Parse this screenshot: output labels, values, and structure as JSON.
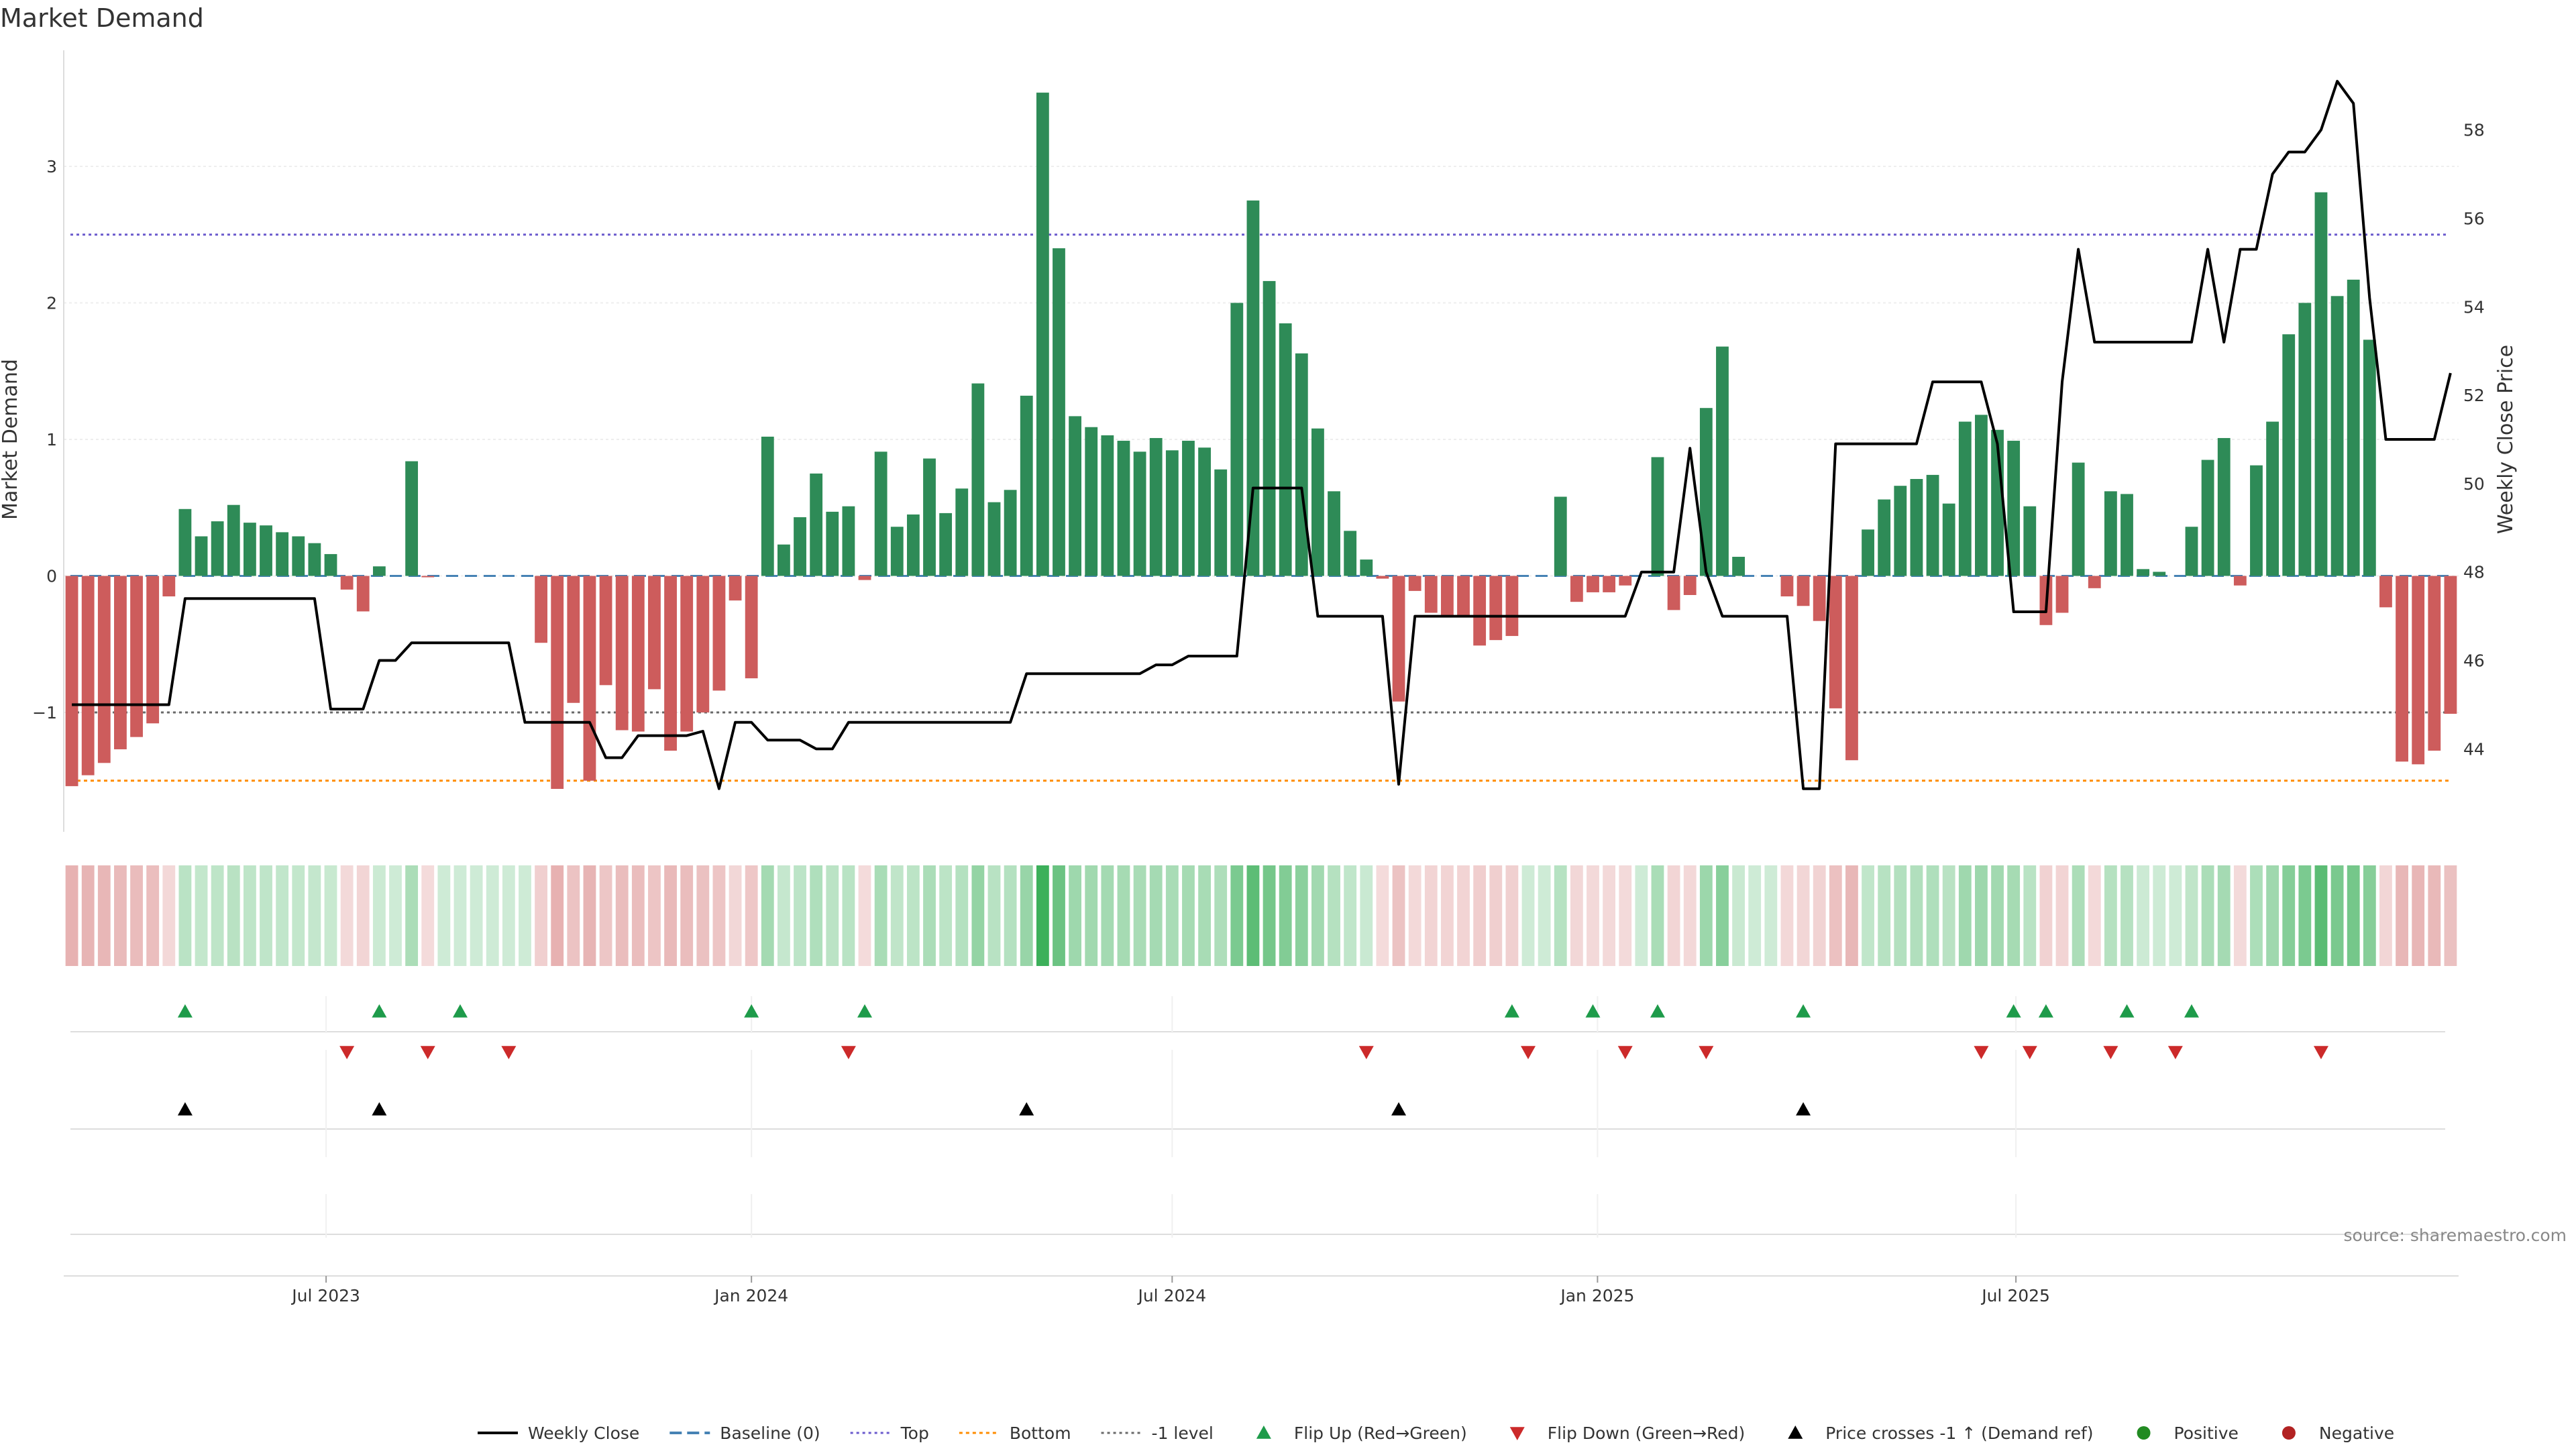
{
  "title": "Market Demand",
  "source": "source: sharemaestro.com",
  "colors": {
    "positive": "#2e8b57",
    "negative": "#cd5c5c",
    "price": "#000000",
    "baseline": "#4682b4",
    "top": "#6a5acd",
    "bottom": "#ff8c00",
    "level_minus1": "#696969",
    "flip_up": "#1e9b4a",
    "flip_down": "#cc2a2a",
    "cross": "#000000",
    "dot_positive": "#228b22",
    "dot_negative": "#b22222"
  },
  "chart_data": {
    "type": "bar",
    "ylabel": "Market Demand",
    "y2label": "Weekly Close Price",
    "ylim": [
      -1.85,
      3.85
    ],
    "y2lim": [
      42.2,
      59.8
    ],
    "yticks": [
      "−1",
      "0",
      "1",
      "2",
      "3"
    ],
    "yticks_values": [
      -1,
      0,
      1,
      2,
      3
    ],
    "y2ticks": [
      "44",
      "46",
      "48",
      "50",
      "52",
      "54",
      "56",
      "58"
    ],
    "y2ticks_values": [
      44,
      46,
      48,
      50,
      52,
      54,
      56,
      58
    ],
    "grid": true,
    "start_date": "2023-03-13",
    "xticks": [
      "Jul 2023",
      "Jan 2024",
      "Jul 2024",
      "Jan 2025",
      "Jul 2025"
    ],
    "xticks_dates": [
      "2023-07-01",
      "2024-01-01",
      "2024-07-01",
      "2025-01-01",
      "2025-07-01"
    ],
    "reference_lines": {
      "baseline": 0,
      "top": 2.5,
      "bottom": -1.5,
      "minus1_level": -1
    },
    "demand": [
      -1.54,
      -1.46,
      -1.37,
      -1.27,
      -1.18,
      -1.08,
      -0.15,
      0.49,
      0.29,
      0.4,
      0.52,
      0.39,
      0.37,
      0.32,
      0.29,
      0.24,
      0.16,
      -0.1,
      -0.26,
      0.07,
      0.0,
      0.84,
      -0.01,
      0.0,
      0.0,
      0.0,
      0.0,
      0.0,
      0.0,
      -0.49,
      -1.56,
      -0.93,
      -1.5,
      -0.8,
      -1.13,
      -1.14,
      -0.83,
      -1.28,
      -1.14,
      -1.0,
      -0.84,
      -0.18,
      -0.75,
      1.02,
      0.23,
      0.43,
      0.75,
      0.47,
      0.51,
      -0.03,
      0.91,
      0.36,
      0.45,
      0.86,
      0.46,
      0.64,
      1.41,
      0.54,
      0.63,
      1.32,
      3.54,
      2.4,
      1.17,
      1.09,
      1.03,
      0.99,
      0.91,
      1.01,
      0.92,
      0.99,
      0.94,
      0.78,
      2.0,
      2.75,
      2.16,
      1.85,
      1.63,
      1.08,
      0.62,
      0.33,
      0.12,
      -0.02,
      -0.92,
      -0.11,
      -0.27,
      -0.29,
      -0.29,
      -0.51,
      -0.47,
      -0.44,
      0.0,
      0.0,
      0.58,
      -0.19,
      -0.12,
      -0.12,
      -0.07,
      0.0,
      0.87,
      -0.25,
      -0.14,
      1.23,
      1.68,
      0.14,
      0.0,
      0.0,
      -0.15,
      -0.22,
      -0.33,
      -0.97,
      -1.35,
      0.34,
      0.56,
      0.66,
      0.71,
      0.74,
      0.53,
      1.13,
      1.18,
      1.07,
      0.99,
      0.51,
      -0.36,
      -0.27,
      0.83,
      -0.09,
      0.62,
      0.6,
      0.05,
      0.03,
      0.0,
      0.36,
      0.85,
      1.01,
      -0.07,
      0.81,
      1.13,
      1.77,
      2.0,
      2.81,
      2.05,
      2.17,
      1.73,
      -0.23,
      -1.36,
      -1.38,
      -1.28,
      -1.01
    ],
    "price": [
      45.0,
      45.0,
      45.0,
      45.0,
      45.0,
      45.0,
      45.0,
      47.4,
      47.4,
      47.4,
      47.4,
      47.4,
      47.4,
      47.4,
      47.4,
      47.4,
      44.9,
      44.9,
      44.9,
      46.0,
      46.0,
      46.4,
      46.4,
      46.4,
      46.4,
      46.4,
      46.4,
      46.4,
      44.6,
      44.6,
      44.6,
      44.6,
      44.6,
      43.8,
      43.8,
      44.3,
      44.3,
      44.3,
      44.3,
      44.4,
      43.1,
      44.6,
      44.6,
      44.2,
      44.2,
      44.2,
      44.0,
      44.0,
      44.6,
      44.6,
      44.6,
      44.6,
      44.6,
      44.6,
      44.6,
      44.6,
      44.6,
      44.6,
      44.6,
      45.7,
      45.7,
      45.7,
      45.7,
      45.7,
      45.7,
      45.7,
      45.7,
      45.9,
      45.9,
      46.1,
      46.1,
      46.1,
      46.1,
      49.9,
      49.9,
      49.9,
      49.9,
      47.0,
      47.0,
      47.0,
      47.0,
      47.0,
      43.2,
      47.0,
      47.0,
      47.0,
      47.0,
      47.0,
      47.0,
      47.0,
      47.0,
      47.0,
      47.0,
      47.0,
      47.0,
      47.0,
      47.0,
      48.0,
      48.0,
      48.0,
      50.8,
      48.0,
      47.0,
      47.0,
      47.0,
      47.0,
      47.0,
      43.1,
      43.1,
      50.9,
      50.9,
      50.9,
      50.9,
      50.9,
      50.9,
      52.3,
      52.3,
      52.3,
      52.3,
      50.9,
      47.1,
      47.1,
      47.1,
      52.3,
      55.3,
      53.2,
      53.2,
      53.2,
      53.2,
      53.2,
      53.2,
      53.2,
      55.3,
      53.2,
      55.3,
      55.3,
      57.0,
      57.5,
      57.5,
      58.0,
      59.1,
      58.6,
      54.2,
      51.0,
      51.0,
      51.0,
      51.0,
      52.5
    ],
    "flip_up_index": [
      7,
      19,
      24,
      42,
      49,
      89,
      94,
      98,
      107,
      120,
      122,
      127,
      131
    ],
    "flip_down_index": [
      17,
      22,
      27,
      48,
      80,
      90,
      96,
      101,
      118,
      121,
      126,
      130,
      139
    ],
    "price_cross_up_index": [
      7,
      19,
      59,
      82,
      107
    ],
    "legend": [
      {
        "key": "price",
        "label": "Weekly Close"
      },
      {
        "key": "baseline",
        "label": "Baseline (0)"
      },
      {
        "key": "top",
        "label": "Top"
      },
      {
        "key": "bottom",
        "label": "Bottom"
      },
      {
        "key": "minus1",
        "label": "-1 level"
      },
      {
        "key": "flip_up",
        "label": "Flip Up (Red→Green)"
      },
      {
        "key": "flip_down",
        "label": "Flip Down (Green→Red)"
      },
      {
        "key": "cross",
        "label": "Price crosses -1 ↑ (Demand ref)"
      },
      {
        "key": "dot_positive",
        "label": "Positive"
      },
      {
        "key": "dot_negative",
        "label": "Negative"
      }
    ],
    "legend_position": "bottom-center"
  }
}
